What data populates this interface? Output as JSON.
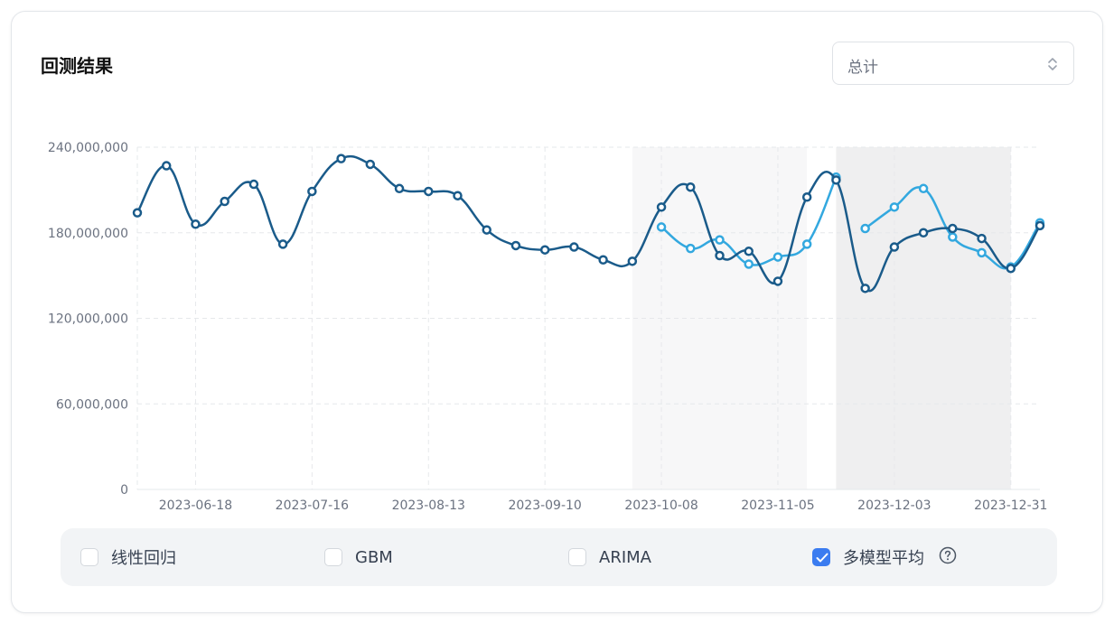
{
  "header": {
    "title": "回测结果"
  },
  "select": {
    "value": "总计"
  },
  "legend": {
    "items": [
      {
        "label": "线性回归",
        "checked": false
      },
      {
        "label": "GBM",
        "checked": false
      },
      {
        "label": "ARIMA",
        "checked": false
      },
      {
        "label": "多模型平均",
        "checked": true
      }
    ]
  },
  "colors": {
    "actual": "#1a5b8a",
    "predicted": "#33a8df",
    "checkbox": "#3b7cf0"
  },
  "icons": {
    "select": "chevron-up-down-icon",
    "help": "question-circle-icon",
    "check": "check-icon"
  },
  "chart_data": {
    "type": "line",
    "y_ticks": [
      "0",
      "60,000,000",
      "120,000,000",
      "180,000,000",
      "240,000,000"
    ],
    "ylim": [
      0,
      240000000
    ],
    "x_tick_labels": [
      "2023-06-18",
      "2023-07-16",
      "2023-08-13",
      "2023-09-10",
      "2023-10-08",
      "2023-11-05",
      "2023-12-03",
      "2023-12-31"
    ],
    "x_tick_dates": [
      "2023-06-18",
      "2023-07-16",
      "2023-08-13",
      "2023-09-10",
      "2023-10-08",
      "2023-11-05",
      "2023-12-03",
      "2023-12-31"
    ],
    "grid": true,
    "shaded_periods": [
      {
        "from": "2023-10-01",
        "to": "2023-11-12"
      },
      {
        "from": "2023-11-19",
        "to": "2023-12-31"
      }
    ],
    "series": [
      {
        "points": [
          [
            "2023-06-04",
            194000000
          ],
          [
            "2023-06-11",
            227000000
          ],
          [
            "2023-06-18",
            186000000
          ],
          [
            "2023-06-25",
            202000000
          ],
          [
            "2023-07-02",
            214000000
          ],
          [
            "2023-07-09",
            172000000
          ],
          [
            "2023-07-16",
            209000000
          ],
          [
            "2023-07-23",
            232000000
          ],
          [
            "2023-07-30",
            228000000
          ],
          [
            "2023-08-06",
            211000000
          ],
          [
            "2023-08-13",
            209000000
          ],
          [
            "2023-08-20",
            206000000
          ],
          [
            "2023-08-27",
            182000000
          ],
          [
            "2023-09-03",
            171000000
          ],
          [
            "2023-09-10",
            168000000
          ],
          [
            "2023-09-17",
            170000000
          ],
          [
            "2023-09-24",
            161000000
          ],
          [
            "2023-10-01",
            160000000
          ],
          [
            "2023-10-08",
            198000000
          ],
          [
            "2023-10-15",
            212000000
          ],
          [
            "2023-10-22",
            164000000
          ],
          [
            "2023-10-29",
            167000000
          ],
          [
            "2023-11-05",
            146000000
          ],
          [
            "2023-11-12",
            205000000
          ],
          [
            "2023-11-19",
            217000000
          ],
          [
            "2023-11-26",
            141000000
          ],
          [
            "2023-12-03",
            170000000
          ],
          [
            "2023-12-10",
            180000000
          ],
          [
            "2023-12-17",
            183000000
          ],
          [
            "2023-12-24",
            176000000
          ],
          [
            "2023-12-31",
            155000000
          ],
          [
            "2024-01-07",
            185000000
          ]
        ]
      },
      {
        "segments": [
          [
            [
              "2023-10-08",
              184000000
            ],
            [
              "2023-10-15",
              169000000
            ],
            [
              "2023-10-22",
              175000000
            ],
            [
              "2023-10-29",
              158000000
            ],
            [
              "2023-11-05",
              163000000
            ],
            [
              "2023-11-12",
              172000000
            ],
            [
              "2023-11-19",
              219000000
            ]
          ],
          [
            [
              "2023-11-26",
              183000000
            ],
            [
              "2023-12-03",
              198000000
            ],
            [
              "2023-12-10",
              211000000
            ],
            [
              "2023-12-17",
              177000000
            ],
            [
              "2023-12-24",
              166000000
            ],
            [
              "2023-12-31",
              156000000
            ],
            [
              "2024-01-07",
              187000000
            ]
          ]
        ]
      }
    ]
  }
}
